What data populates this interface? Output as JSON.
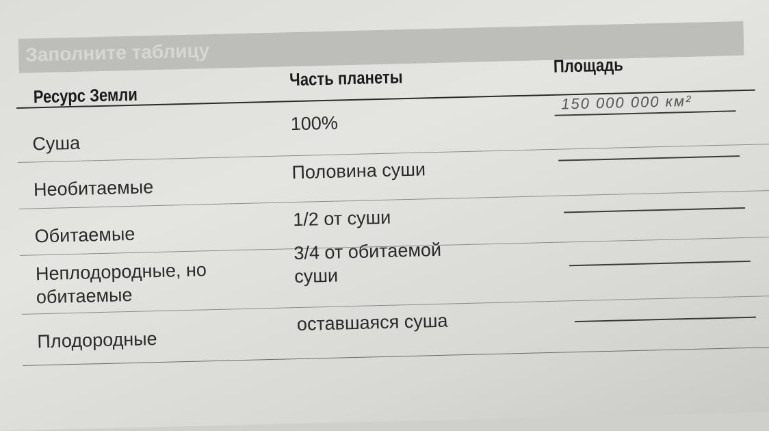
{
  "title": "Заполните таблицу",
  "table": {
    "headers": [
      "Ресурс Земли",
      "Часть планеты",
      "Площадь"
    ],
    "rows": [
      {
        "resource": "Суша",
        "part": "100%",
        "area": "150 000 000 км²"
      },
      {
        "resource": "Необитаемые",
        "part": "Половина суши",
        "area": ""
      },
      {
        "resource": "Обитаемые",
        "part": "1/2 от суши",
        "area": ""
      },
      {
        "resource": "Неплодородные, но обитаемые",
        "part": "3/4 от обитаемой суши",
        "area": ""
      },
      {
        "resource": "Плодородные",
        "part": "оставшаяся суша",
        "area": ""
      }
    ]
  }
}
